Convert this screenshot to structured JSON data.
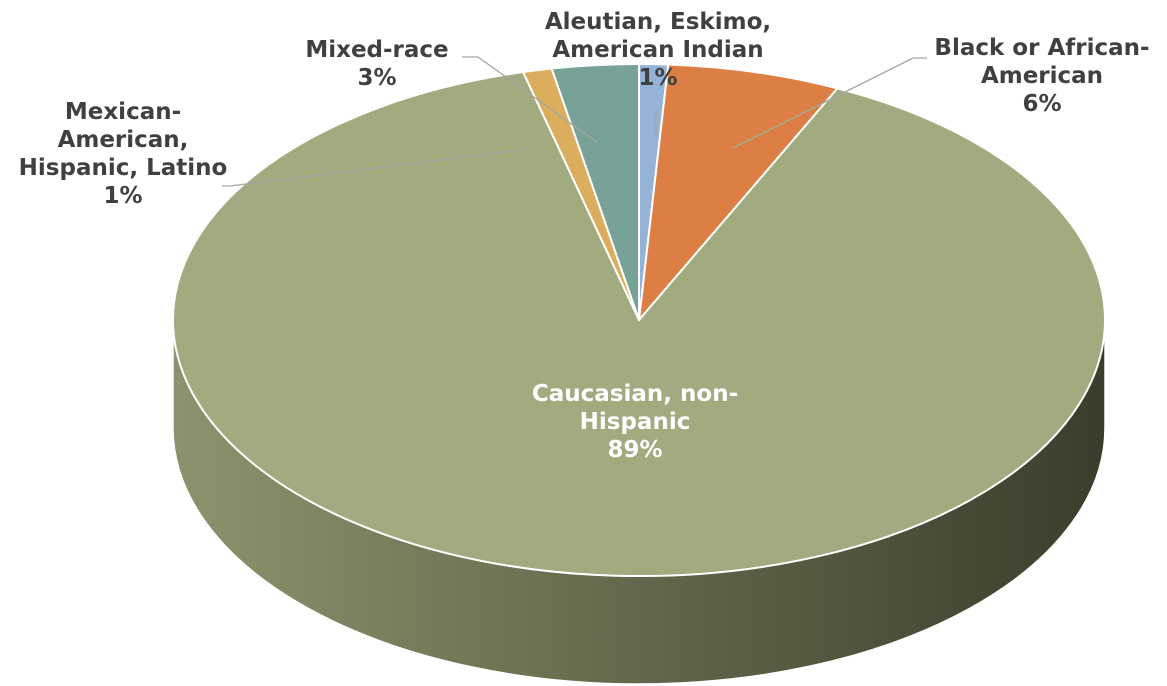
{
  "chart_data": {
    "type": "pie",
    "title": "",
    "slices": [
      {
        "category": "Aleutian, Eskimo, American Indian",
        "value": 1,
        "value_label": "1%",
        "color": "#95B3D7"
      },
      {
        "category": "Black or African-American",
        "value": 6,
        "value_label": "6%",
        "color": "#DD7F45"
      },
      {
        "category": "Caucasian, non-Hispanic",
        "value": 89,
        "value_label": "89%",
        "color": "#A2AA7F"
      },
      {
        "category": "Mexican-American, Hispanic, Latino",
        "value": 1,
        "value_label": "1%",
        "color": "#DBAE5D"
      },
      {
        "category": "Mixed-race",
        "value": 3,
        "value_label": "3%",
        "color": "#78A297"
      }
    ],
    "labels": {
      "aleutian": [
        "Aleutian, Eskimo,",
        "American Indian",
        "1%"
      ],
      "black": [
        "Black or African-",
        "American",
        "6%"
      ],
      "caucasian": [
        "Caucasian, non-",
        "Hispanic",
        "89%"
      ],
      "mexican": [
        "Mexican-",
        "American,",
        "Hispanic, Latino",
        "1%"
      ],
      "mixed": [
        "Mixed-race",
        "3%"
      ]
    },
    "legend": "none",
    "style": "3d-pie"
  }
}
